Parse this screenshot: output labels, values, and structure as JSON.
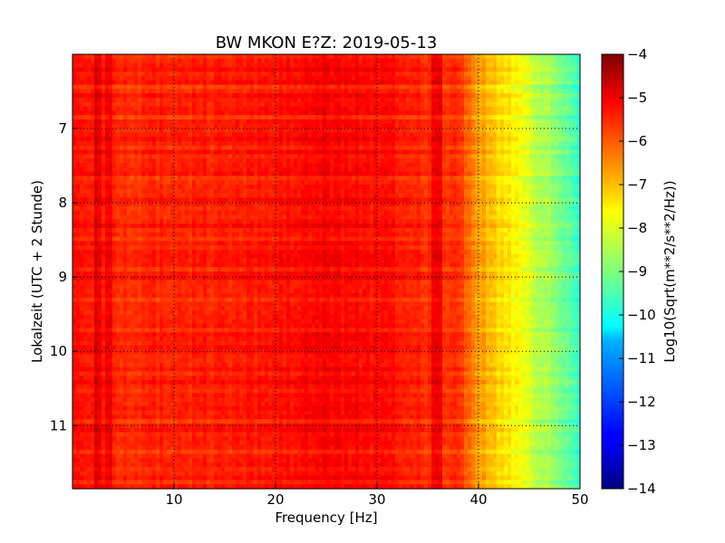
{
  "chart_data": {
    "type": "heatmap",
    "title": "BW MKON E?Z: 2019-05-13",
    "xlabel": "Frequency [Hz]",
    "ylabel": "Lokalzeit (UTC + 2 Stunde)",
    "xlim": [
      0,
      50
    ],
    "ylim": [
      11.85,
      6.0
    ],
    "y_inverted": true,
    "x_ticks": [
      10,
      20,
      30,
      40,
      50
    ],
    "y_ticks": [
      7,
      8,
      9,
      10,
      11
    ],
    "grid": true,
    "colormap": "jet",
    "colorbar": {
      "label": "Log10(Sqrt(m**2/s**2/Hz))",
      "range": [
        -14,
        -4
      ],
      "ticks": [
        -4,
        -5,
        -6,
        -7,
        -8,
        -9,
        -10,
        -11,
        -12,
        -13,
        -14
      ]
    },
    "spectrum_profile": {
      "frequency_hz": [
        0,
        5,
        10,
        15,
        20,
        25,
        30,
        35,
        38,
        40,
        42,
        44,
        46,
        48,
        50
      ],
      "log10_amplitude": [
        -5.3,
        -5.6,
        -5.5,
        -5.5,
        -5.4,
        -5.2,
        -5.3,
        -5.6,
        -5.7,
        -6.7,
        -7.3,
        -7.8,
        -8.4,
        -9.0,
        -9.6
      ]
    },
    "time_span_hours": [
      6.0,
      11.85
    ],
    "colors": {
      "jet": [
        "#00007f",
        "#0000ff",
        "#007fff",
        "#00ffff",
        "#7fff7f",
        "#ffff00",
        "#ff7f00",
        "#ff0000",
        "#7f0000"
      ]
    }
  }
}
